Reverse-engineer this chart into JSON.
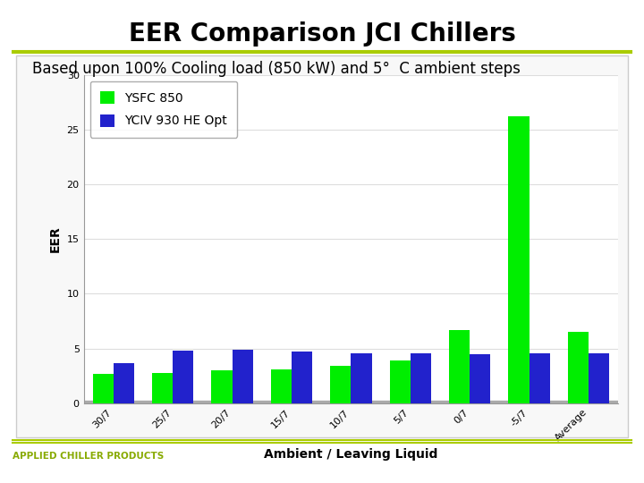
{
  "title": "EER Comparison JCI Chillers",
  "subtitle": "Based upon 100% Cooling load (850 kW) and 5°  C ambient steps",
  "ylabel": "EER",
  "xlabel": "Ambient / Leaving Liquid",
  "categories": [
    "30/7",
    "25/7",
    "20/7",
    "15/7",
    "10/7",
    "5/7",
    "0/7",
    "-5/7",
    "Average"
  ],
  "ysfc_850": [
    2.7,
    2.8,
    3.0,
    3.1,
    3.4,
    3.9,
    6.7,
    26.2,
    6.5
  ],
  "yciv_930": [
    3.7,
    4.8,
    4.9,
    4.7,
    4.6,
    4.6,
    4.5,
    4.6,
    4.6
  ],
  "color_ysfc": "#00ee00",
  "color_yciv": "#2222cc",
  "ylim": [
    0,
    30
  ],
  "yticks": [
    0,
    5,
    10,
    15,
    20,
    25,
    30
  ],
  "legend_labels": [
    "YSFC 850",
    "YCIV 930 HE Opt"
  ],
  "footer_text": "APPLIED CHILLER PRODUCTS",
  "footer_color": "#88aa00",
  "separator_color": "#aacc00",
  "background_color": "#ffffff",
  "plot_bg_color": "#ffffff",
  "inner_box_bg": "#ffffff",
  "title_fontsize": 20,
  "subtitle_fontsize": 12,
  "axis_label_fontsize": 10,
  "tick_fontsize": 8,
  "legend_fontsize": 10,
  "bar_width": 0.35
}
